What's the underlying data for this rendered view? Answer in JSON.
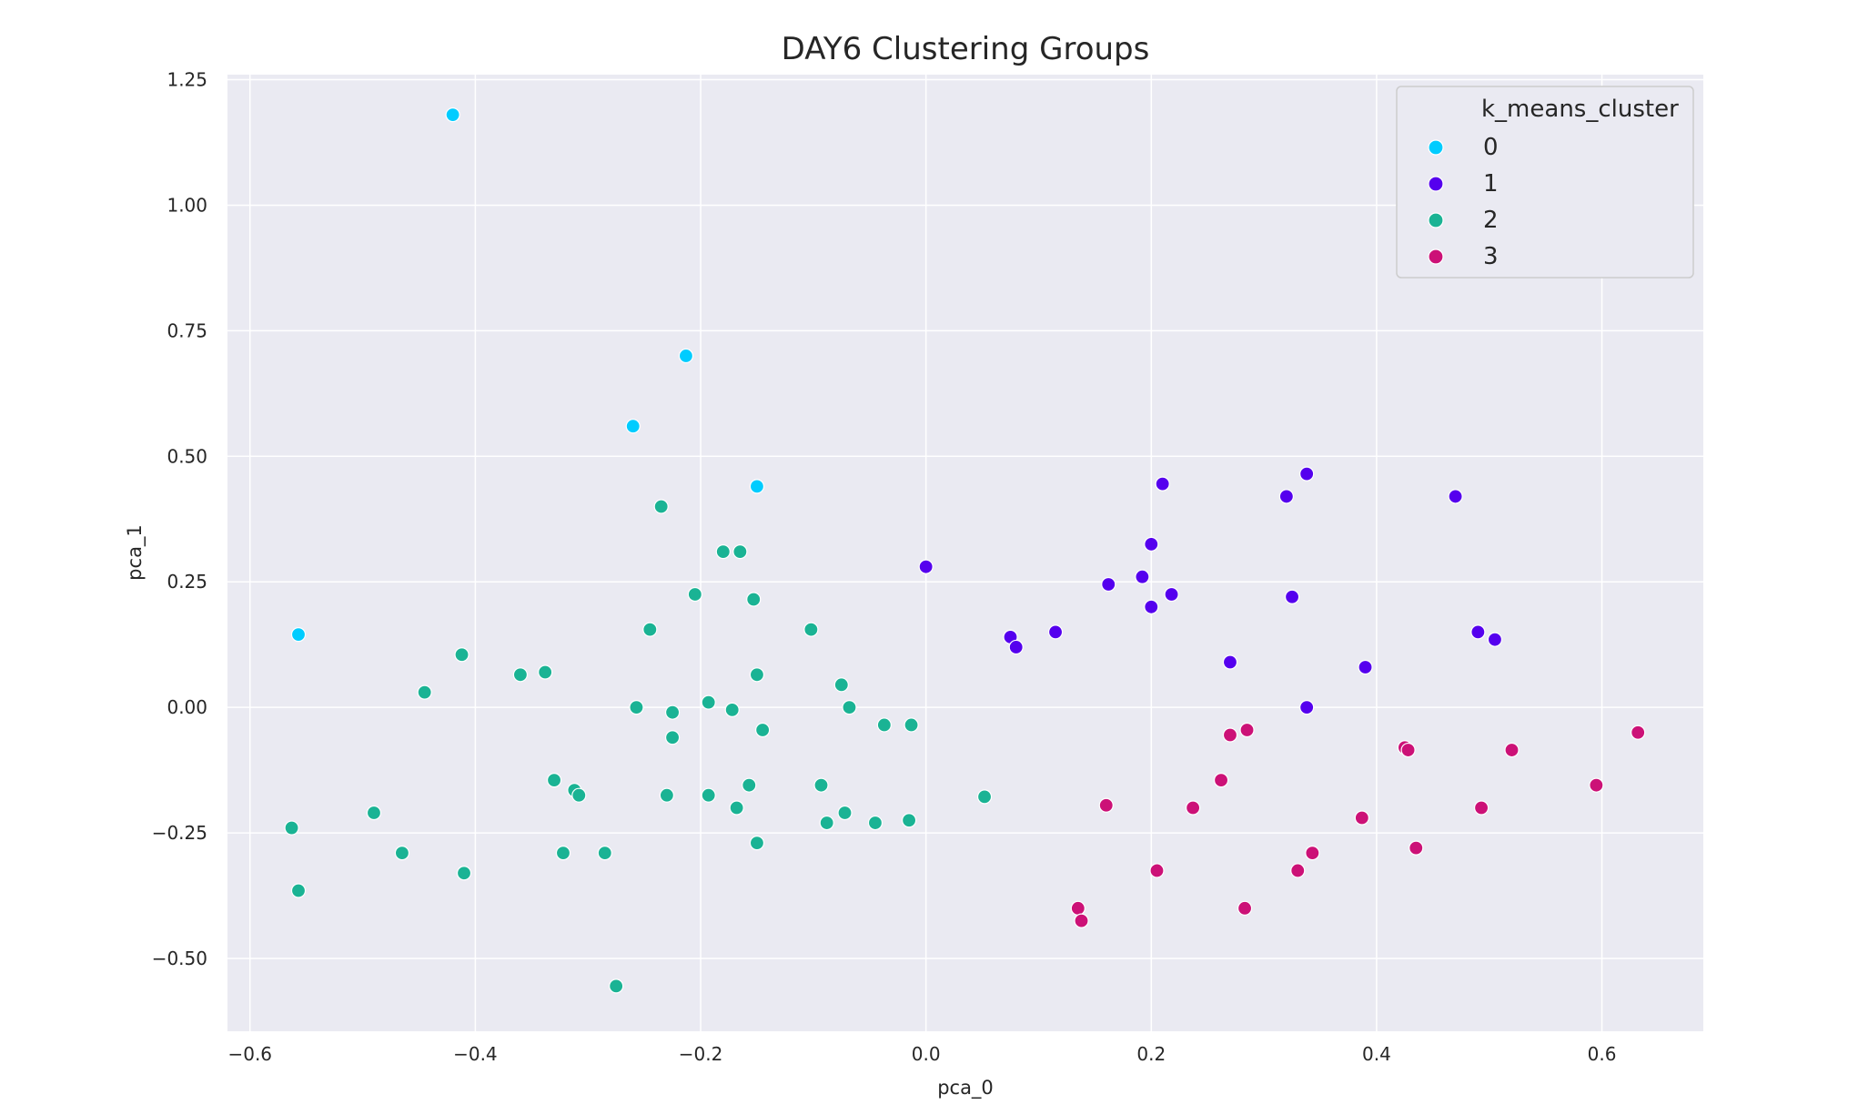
{
  "chart_data": {
    "type": "scatter",
    "title": "DAY6 Clustering Groups",
    "xlabel": "pca_0",
    "ylabel": "pca_1",
    "xlim": [
      -0.62,
      0.69
    ],
    "ylim": [
      -0.645,
      1.26
    ],
    "xticks": [
      -0.6,
      -0.4,
      -0.2,
      0.0,
      0.2,
      0.4,
      0.6
    ],
    "xtick_labels": [
      "−0.6",
      "−0.4",
      "−0.2",
      "0.0",
      "0.2",
      "0.4",
      "0.6"
    ],
    "yticks": [
      1.25,
      1.0,
      0.75,
      0.5,
      0.25,
      0.0,
      -0.25,
      -0.5
    ],
    "ytick_labels": [
      "1.25",
      "1.00",
      "0.75",
      "0.50",
      "0.25",
      "0.00",
      "−0.25",
      "−0.50"
    ],
    "grid": true,
    "background": "#eaeaf2",
    "legend": {
      "title": "k_means_cluster",
      "position": "top-right"
    },
    "series": [
      {
        "name": "0",
        "color": "#00ccff",
        "points": [
          [
            -0.42,
            1.18
          ],
          [
            -0.213,
            0.7
          ],
          [
            -0.26,
            0.56
          ],
          [
            -0.15,
            0.44
          ],
          [
            -0.557,
            0.145
          ]
        ]
      },
      {
        "name": "1",
        "color": "#5500ee",
        "points": [
          [
            0.0,
            0.28
          ],
          [
            0.21,
            0.445
          ],
          [
            0.2,
            0.325
          ],
          [
            0.338,
            0.465
          ],
          [
            0.32,
            0.42
          ],
          [
            0.47,
            0.42
          ],
          [
            0.162,
            0.245
          ],
          [
            0.192,
            0.26
          ],
          [
            0.218,
            0.225
          ],
          [
            0.2,
            0.2
          ],
          [
            0.325,
            0.22
          ],
          [
            0.075,
            0.14
          ],
          [
            0.08,
            0.12
          ],
          [
            0.115,
            0.15
          ],
          [
            0.27,
            0.09
          ],
          [
            0.49,
            0.15
          ],
          [
            0.505,
            0.135
          ],
          [
            0.39,
            0.08
          ],
          [
            0.338,
            0.0
          ]
        ]
      },
      {
        "name": "2",
        "color": "#1ab394",
        "points": [
          [
            -0.235,
            0.4
          ],
          [
            -0.18,
            0.31
          ],
          [
            -0.165,
            0.31
          ],
          [
            -0.205,
            0.225
          ],
          [
            -0.153,
            0.215
          ],
          [
            -0.245,
            0.155
          ],
          [
            -0.102,
            0.155
          ],
          [
            -0.412,
            0.105
          ],
          [
            -0.36,
            0.065
          ],
          [
            -0.338,
            0.07
          ],
          [
            -0.445,
            0.03
          ],
          [
            -0.15,
            0.065
          ],
          [
            -0.075,
            0.045
          ],
          [
            -0.193,
            0.01
          ],
          [
            -0.257,
            0.0
          ],
          [
            -0.225,
            -0.01
          ],
          [
            -0.172,
            -0.005
          ],
          [
            -0.068,
            0.0
          ],
          [
            -0.145,
            -0.045
          ],
          [
            -0.037,
            -0.035
          ],
          [
            -0.013,
            -0.035
          ],
          [
            -0.225,
            -0.06
          ],
          [
            -0.33,
            -0.145
          ],
          [
            -0.312,
            -0.165
          ],
          [
            -0.308,
            -0.175
          ],
          [
            -0.23,
            -0.175
          ],
          [
            -0.193,
            -0.175
          ],
          [
            -0.157,
            -0.155
          ],
          [
            -0.168,
            -0.2
          ],
          [
            -0.093,
            -0.155
          ],
          [
            0.052,
            -0.178
          ],
          [
            -0.49,
            -0.21
          ],
          [
            -0.072,
            -0.21
          ],
          [
            -0.088,
            -0.23
          ],
          [
            -0.045,
            -0.23
          ],
          [
            -0.015,
            -0.225
          ],
          [
            -0.563,
            -0.24
          ],
          [
            -0.465,
            -0.29
          ],
          [
            -0.322,
            -0.29
          ],
          [
            -0.285,
            -0.29
          ],
          [
            -0.15,
            -0.27
          ],
          [
            -0.41,
            -0.33
          ],
          [
            -0.557,
            -0.365
          ],
          [
            -0.275,
            -0.555
          ]
        ]
      },
      {
        "name": "3",
        "color": "#cc1177",
        "points": [
          [
            0.632,
            -0.05
          ],
          [
            0.285,
            -0.045
          ],
          [
            0.27,
            -0.055
          ],
          [
            0.425,
            -0.08
          ],
          [
            0.428,
            -0.085
          ],
          [
            0.52,
            -0.085
          ],
          [
            0.595,
            -0.155
          ],
          [
            0.262,
            -0.145
          ],
          [
            0.16,
            -0.195
          ],
          [
            0.237,
            -0.2
          ],
          [
            0.493,
            -0.2
          ],
          [
            0.387,
            -0.22
          ],
          [
            0.435,
            -0.28
          ],
          [
            0.343,
            -0.29
          ],
          [
            0.205,
            -0.325
          ],
          [
            0.33,
            -0.325
          ],
          [
            0.135,
            -0.4
          ],
          [
            0.138,
            -0.425
          ],
          [
            0.283,
            -0.4
          ]
        ]
      }
    ]
  }
}
